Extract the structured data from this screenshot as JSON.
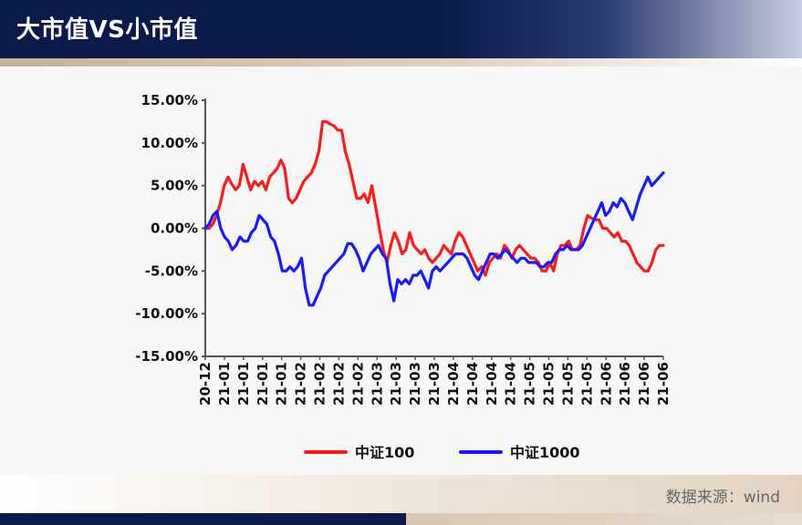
{
  "header": {
    "title": "大市值VS小市值"
  },
  "footer": {
    "source": "数据来源：wind"
  },
  "colors": {
    "series1": "#ff1a1a",
    "series2": "#1a1aff",
    "header": "#0b1a4a"
  },
  "chart_data": {
    "type": "line",
    "title": "",
    "xlabel": "",
    "ylabel": "",
    "ylim": [
      -15,
      15
    ],
    "y_ticks": [
      15,
      10,
      5,
      0,
      -5,
      -10,
      -15
    ],
    "y_tick_labels": [
      "15.00%",
      "10.00%",
      "5.00%",
      "0.00%",
      "-5.00%",
      "-10.00%",
      "-15.00%"
    ],
    "x_tick_labels": [
      "20-12",
      "21-01",
      "21-01",
      "21-01",
      "21-01",
      "21-02",
      "21-02",
      "21-02",
      "21-02",
      "21-03",
      "21-03",
      "21-03",
      "21-03",
      "21-04",
      "21-04",
      "21-04",
      "21-04",
      "21-05",
      "21-05",
      "21-05",
      "21-05",
      "21-06",
      "21-06",
      "21-06",
      "21-06"
    ],
    "grid": false,
    "legend_position": "bottom",
    "series": [
      {
        "name": "中证100",
        "color": "#ff1a1a",
        "values": [
          0,
          0,
          0.5,
          1.5,
          3,
          5,
          6,
          5.2,
          4.5,
          5,
          7.5,
          6,
          4.5,
          5.5,
          5,
          5.5,
          4.5,
          6,
          6.5,
          7,
          8,
          7,
          3.5,
          3,
          3.5,
          4.5,
          5.5,
          6,
          6.5,
          7.5,
          9,
          12.5,
          12.5,
          12.2,
          12,
          11.5,
          11.5,
          9,
          7.5,
          5.5,
          3.5,
          3.5,
          4,
          3,
          5,
          2.5,
          0,
          -2.5,
          -4,
          -2,
          -0.5,
          -1.5,
          -3,
          -2.5,
          -0.5,
          -2,
          -2.5,
          -3,
          -2.5,
          -3.5,
          -4,
          -3.5,
          -3,
          -2,
          -2.5,
          -3,
          -1.5,
          -0.5,
          -1,
          -2,
          -3,
          -4,
          -5,
          -4.5,
          -5.5,
          -4,
          -3.5,
          -3,
          -3.5,
          -2,
          -2.5,
          -3.5,
          -2.5,
          -2,
          -2.5,
          -3,
          -3.5,
          -3.5,
          -4,
          -5,
          -5,
          -4,
          -5,
          -3,
          -2,
          -2,
          -1.5,
          -2.5,
          -2.5,
          -2,
          0,
          1.5,
          1.2,
          1,
          1,
          0,
          0,
          -0.5,
          -1,
          -0.5,
          -1.5,
          -1.5,
          -2,
          -3,
          -4,
          -4.5,
          -5,
          -5,
          -4,
          -2.5,
          -2,
          -2
        ]
      },
      {
        "name": "中证1000",
        "color": "#1a1aff",
        "values": [
          0,
          0.5,
          1.5,
          2,
          0,
          -1,
          -1.5,
          -2.5,
          -2,
          -1,
          -1.5,
          -1.5,
          -0.5,
          0,
          1.5,
          1,
          0.5,
          -1,
          -1.5,
          -3,
          -5,
          -5,
          -4.5,
          -5,
          -4.5,
          -3.5,
          -7,
          -9,
          -9,
          -8,
          -7,
          -5.5,
          -5,
          -4.5,
          -4,
          -3.5,
          -3,
          -1.8,
          -1.8,
          -2.5,
          -3.5,
          -5,
          -4,
          -3,
          -2.5,
          -2,
          -3,
          -3.5,
          -6.5,
          -8.5,
          -6,
          -6.5,
          -6,
          -6.5,
          -5.5,
          -5.5,
          -5,
          -6,
          -7,
          -5,
          -4.5,
          -5,
          -4.5,
          -4,
          -3.5,
          -3,
          -3,
          -3,
          -3.5,
          -4.5,
          -5.5,
          -6,
          -5,
          -4,
          -3,
          -3,
          -3.5,
          -3,
          -2.5,
          -3,
          -3.5,
          -4,
          -3.5,
          -3.5,
          -4,
          -4,
          -4,
          -4.5,
          -4.5,
          -4,
          -4,
          -3,
          -2.5,
          -2.5,
          -2,
          -2.5,
          -2.5,
          -2.5,
          -2,
          -1,
          0,
          1,
          2,
          3,
          1.5,
          2,
          3,
          2.5,
          3.5,
          3,
          2,
          1,
          2.5,
          4,
          5,
          6,
          5,
          5.5,
          6,
          6.5
        ]
      }
    ]
  }
}
